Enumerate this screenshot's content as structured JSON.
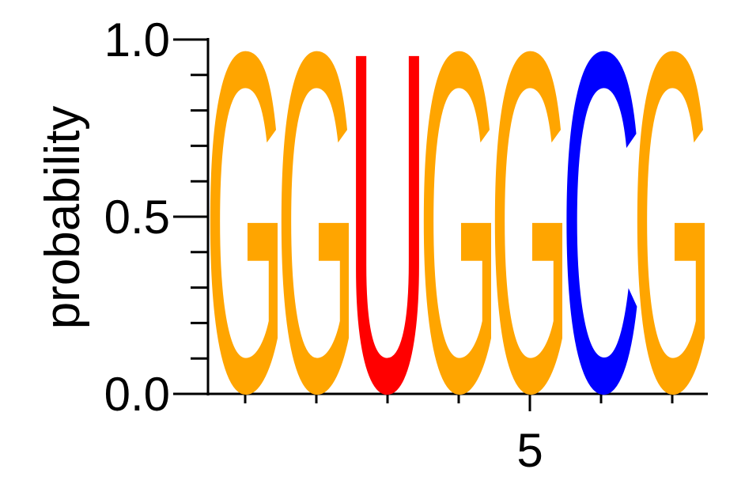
{
  "chart_data": {
    "type": "logo",
    "ylabel": "probability",
    "x": [
      1,
      2,
      3,
      4,
      5,
      6,
      7
    ],
    "letters": [
      "G",
      "G",
      "U",
      "G",
      "G",
      "C",
      "G"
    ],
    "values": [
      1,
      1,
      1,
      1,
      1,
      1,
      1
    ],
    "colors": [
      "#ffa500",
      "#ffa500",
      "#ff0000",
      "#ffa500",
      "#ffa500",
      "#0000ff",
      "#ffa500"
    ],
    "xlim": [
      0.5,
      7.5
    ],
    "xticks": [
      5
    ],
    "xminorticks": [
      1,
      2,
      3,
      4,
      6,
      7
    ],
    "ylim": [
      0,
      1
    ],
    "yticks": [
      {
        "value": 0,
        "label": "0.0"
      },
      {
        "value": 0.5,
        "label": "0.5"
      },
      {
        "value": 1,
        "label": "1.0"
      }
    ],
    "yminorticks": [
      0.1,
      0.2,
      0.3,
      0.4,
      0.6,
      0.7,
      0.8,
      0.9
    ]
  }
}
